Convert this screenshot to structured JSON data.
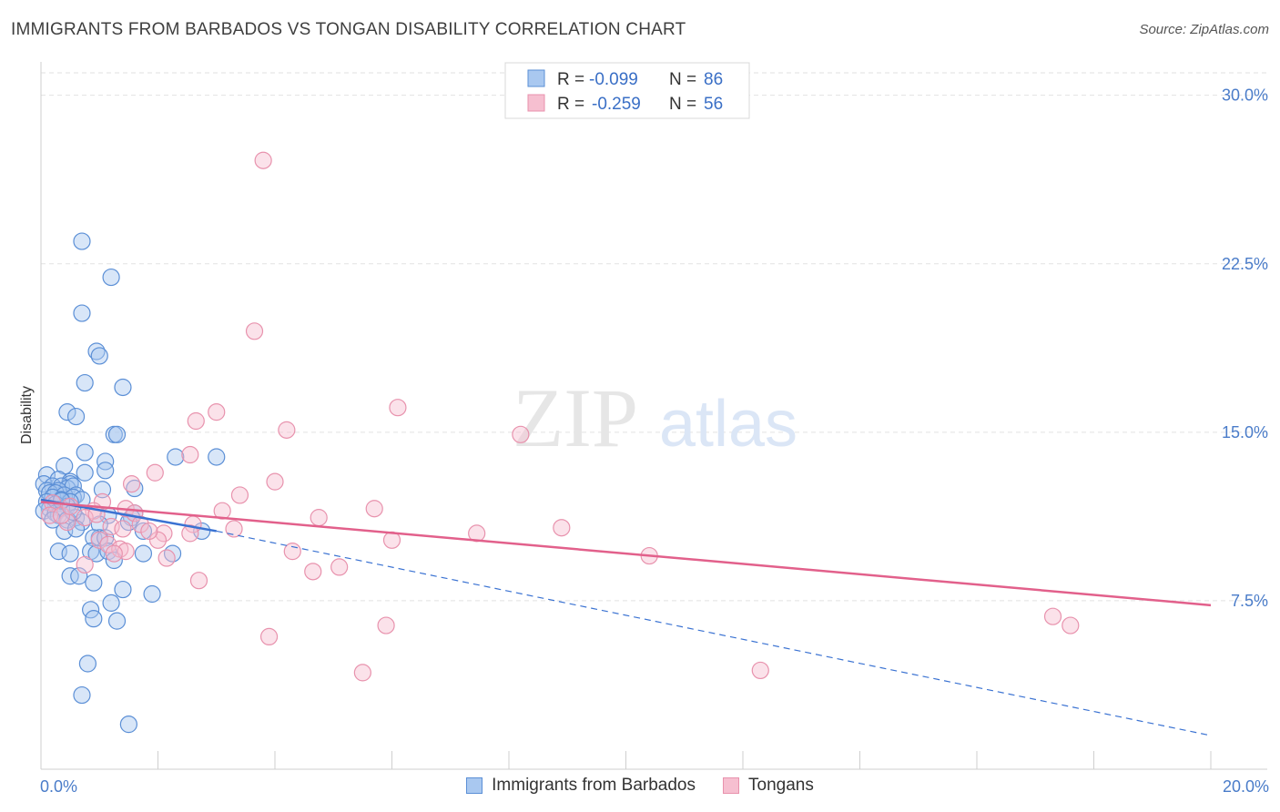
{
  "header": {
    "title": "IMMIGRANTS FROM BARBADOS VS TONGAN DISABILITY CORRELATION CHART",
    "source": "Source: ZipAtlas.com"
  },
  "watermark": {
    "zip": "ZIP",
    "atlas": "atlas"
  },
  "colors": {
    "blue_fill": "#a9c8f0",
    "blue_stroke": "#5b8fd6",
    "blue_line": "#3a72d2",
    "pink_fill": "#f6bfd0",
    "pink_stroke": "#e892ad",
    "pink_line": "#e2608b",
    "tick_label": "#4a7cc9",
    "grid": "#e2e2e2"
  },
  "legend": {
    "r_label": "R =",
    "n_label": "N =",
    "entries": [
      {
        "r": "-0.099",
        "n": "86"
      },
      {
        "r": "-0.259",
        "n": "56"
      }
    ]
  },
  "chart_data": {
    "type": "scatter",
    "ylabel": "Disability",
    "xlim": [
      0,
      20
    ],
    "ylim": [
      0,
      31
    ],
    "x_tick_labels": [
      "0.0%",
      "20.0%"
    ],
    "y_ticks": [
      7.5,
      15.0,
      22.5,
      30.0
    ],
    "y_tick_labels": [
      "7.5%",
      "15.0%",
      "22.5%",
      "30.0%"
    ],
    "grid": true,
    "legend_position": "top-center",
    "series": [
      {
        "name": "Immigrants from Barbados",
        "trend": {
          "x0": 0,
          "y0": 12.0,
          "x1": 3.0,
          "y1": 10.6,
          "dash_x1": 20,
          "dash_y1": 1.5
        },
        "points": [
          [
            0.7,
            23.5
          ],
          [
            1.2,
            21.9
          ],
          [
            0.7,
            20.3
          ],
          [
            0.95,
            18.6
          ],
          [
            1.0,
            18.4
          ],
          [
            0.75,
            17.2
          ],
          [
            1.4,
            17.0
          ],
          [
            0.45,
            15.9
          ],
          [
            0.6,
            15.7
          ],
          [
            1.25,
            14.9
          ],
          [
            1.3,
            14.9
          ],
          [
            0.75,
            14.1
          ],
          [
            2.3,
            13.9
          ],
          [
            3.0,
            13.9
          ],
          [
            1.1,
            13.7
          ],
          [
            0.4,
            13.5
          ],
          [
            1.1,
            13.3
          ],
          [
            0.75,
            13.2
          ],
          [
            0.1,
            13.1
          ],
          [
            0.3,
            12.9
          ],
          [
            0.5,
            12.8
          ],
          [
            0.05,
            12.7
          ],
          [
            0.5,
            12.7
          ],
          [
            0.2,
            12.6
          ],
          [
            0.35,
            12.6
          ],
          [
            0.45,
            12.5
          ],
          [
            0.55,
            12.6
          ],
          [
            1.6,
            12.5
          ],
          [
            0.1,
            12.4
          ],
          [
            0.3,
            12.4
          ],
          [
            0.15,
            12.3
          ],
          [
            0.25,
            12.3
          ],
          [
            0.6,
            12.2
          ],
          [
            0.4,
            12.2
          ],
          [
            0.2,
            12.1
          ],
          [
            0.55,
            12.1
          ],
          [
            0.7,
            12.0
          ],
          [
            0.35,
            12.0
          ],
          [
            0.1,
            11.9
          ],
          [
            0.5,
            11.9
          ],
          [
            0.25,
            11.8
          ],
          [
            0.45,
            11.7
          ],
          [
            0.15,
            11.6
          ],
          [
            0.35,
            11.6
          ],
          [
            0.05,
            11.5
          ],
          [
            0.25,
            11.4
          ],
          [
            1.6,
            11.4
          ],
          [
            0.3,
            11.3
          ],
          [
            1.15,
            11.3
          ],
          [
            0.6,
            11.2
          ],
          [
            1.55,
            11.2
          ],
          [
            0.2,
            11.1
          ],
          [
            0.45,
            11.1
          ],
          [
            0.7,
            11.0
          ],
          [
            1.5,
            11.0
          ],
          [
            1.0,
            10.9
          ],
          [
            0.4,
            10.6
          ],
          [
            0.6,
            10.7
          ],
          [
            1.75,
            10.6
          ],
          [
            2.75,
            10.6
          ],
          [
            1.0,
            10.3
          ],
          [
            0.9,
            10.3
          ],
          [
            1.1,
            10.3
          ],
          [
            0.3,
            9.7
          ],
          [
            0.5,
            9.6
          ],
          [
            0.85,
            9.7
          ],
          [
            0.95,
            9.6
          ],
          [
            1.15,
            9.7
          ],
          [
            1.75,
            9.6
          ],
          [
            2.25,
            9.6
          ],
          [
            1.25,
            9.3
          ],
          [
            0.5,
            8.6
          ],
          [
            0.65,
            8.6
          ],
          [
            0.9,
            8.3
          ],
          [
            1.4,
            8.0
          ],
          [
            1.9,
            7.8
          ],
          [
            1.2,
            7.4
          ],
          [
            0.85,
            7.1
          ],
          [
            0.9,
            6.7
          ],
          [
            1.3,
            6.6
          ],
          [
            0.8,
            4.7
          ],
          [
            0.7,
            3.3
          ],
          [
            1.5,
            2.0
          ],
          [
            0.35,
            11.95
          ],
          [
            0.55,
            11.45
          ],
          [
            1.05,
            12.45
          ]
        ]
      },
      {
        "name": "Tongans",
        "trend": {
          "x0": 0,
          "y0": 11.9,
          "x1": 20,
          "y1": 7.3
        },
        "points": [
          [
            3.8,
            27.1
          ],
          [
            3.65,
            19.5
          ],
          [
            6.1,
            16.1
          ],
          [
            3.0,
            15.9
          ],
          [
            2.65,
            15.5
          ],
          [
            4.2,
            15.1
          ],
          [
            8.2,
            14.9
          ],
          [
            2.55,
            14.0
          ],
          [
            1.95,
            13.2
          ],
          [
            4.0,
            12.8
          ],
          [
            1.55,
            12.7
          ],
          [
            3.4,
            12.2
          ],
          [
            1.05,
            11.9
          ],
          [
            0.2,
            11.85
          ],
          [
            5.7,
            11.6
          ],
          [
            3.1,
            11.5
          ],
          [
            1.45,
            11.6
          ],
          [
            0.9,
            11.5
          ],
          [
            1.6,
            11.4
          ],
          [
            0.15,
            11.3
          ],
          [
            0.75,
            11.2
          ],
          [
            4.75,
            11.2
          ],
          [
            0.45,
            11.0
          ],
          [
            0.35,
            11.3
          ],
          [
            1.2,
            10.8
          ],
          [
            1.7,
            10.9
          ],
          [
            2.6,
            10.9
          ],
          [
            3.3,
            10.7
          ],
          [
            8.9,
            10.75
          ],
          [
            1.4,
            10.7
          ],
          [
            2.1,
            10.5
          ],
          [
            2.55,
            10.5
          ],
          [
            2.0,
            10.2
          ],
          [
            1.0,
            10.2
          ],
          [
            1.15,
            10.0
          ],
          [
            6.0,
            10.2
          ],
          [
            7.45,
            10.5
          ],
          [
            1.35,
            9.8
          ],
          [
            1.45,
            9.7
          ],
          [
            4.3,
            9.7
          ],
          [
            2.15,
            9.4
          ],
          [
            10.4,
            9.5
          ],
          [
            1.25,
            9.6
          ],
          [
            5.1,
            9.0
          ],
          [
            0.75,
            9.1
          ],
          [
            4.65,
            8.8
          ],
          [
            2.7,
            8.4
          ],
          [
            17.3,
            6.8
          ],
          [
            17.6,
            6.4
          ],
          [
            5.9,
            6.4
          ],
          [
            3.9,
            5.9
          ],
          [
            5.5,
            4.3
          ],
          [
            12.3,
            4.4
          ],
          [
            0.5,
            11.7
          ],
          [
            0.95,
            11.35
          ],
          [
            1.85,
            10.6
          ]
        ]
      }
    ]
  }
}
